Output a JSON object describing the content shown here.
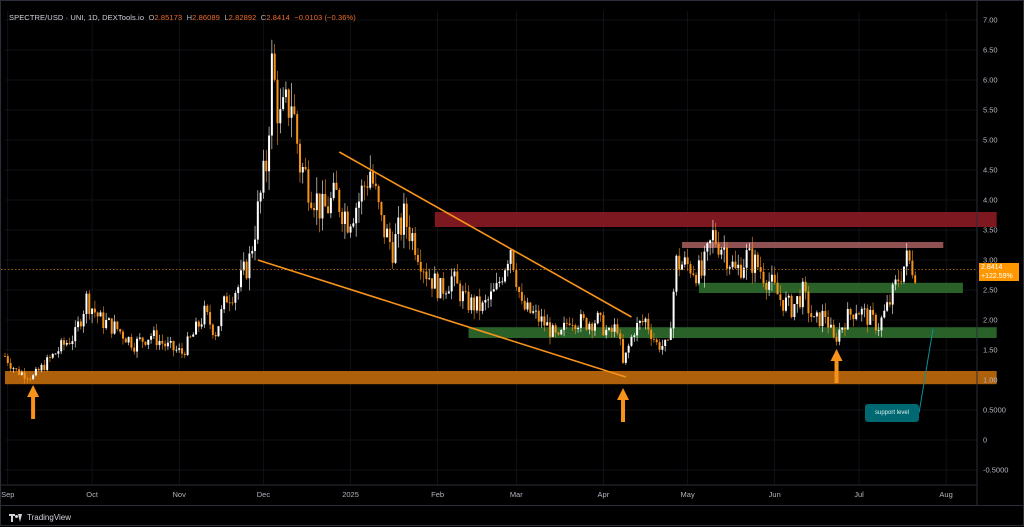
{
  "header": {
    "symbol": "SPECTRE/USD · UNI, 1D, DEXTools.io",
    "open_label": "O",
    "open": "2.85173",
    "high_label": "H",
    "high": "2.86089",
    "low_label": "L",
    "low": "2.82892",
    "close_label": "C",
    "close": "2.8414",
    "change": "−0.0103 (−0.36%)"
  },
  "price_tag": {
    "price": "2.8414",
    "change_pct": "+122.59%"
  },
  "footer": {
    "logo_text": "TradingView"
  },
  "annotation": {
    "text": "support level"
  },
  "colors": {
    "background": "#000000",
    "grid": "#1e222d",
    "candle": "#f7931a",
    "trendline": "#f7931a",
    "resistance_zone": "#8b1a24",
    "resistance_line": "#a05a5c",
    "support_zone": "#2e6b2e",
    "base_support": "#b8650c",
    "callout": "#006870"
  },
  "chart_data": {
    "type": "candlestick",
    "title": "SPECTRE/USD · UNI, 1D, DEXTools.io",
    "xlabel": "",
    "ylabel": "",
    "y_ticks": [
      "7.00",
      "6.50",
      "6.00",
      "5.50",
      "5.00",
      "4.50",
      "4.00",
      "3.50",
      "3.00",
      "2.50",
      "2.00",
      "1.50",
      "1.00",
      "0.5000",
      "0",
      "-0.5000"
    ],
    "y_tick_values": [
      7,
      6.5,
      6,
      5.5,
      5,
      4.5,
      4,
      3.5,
      3,
      2.5,
      2,
      1.5,
      1,
      0.5,
      0,
      -0.5
    ],
    "ylim": [
      -0.75,
      7.15
    ],
    "x_range": [
      "2024-08-31",
      "2025-08-12"
    ],
    "x_ticks": [
      {
        "label": "Sep",
        "date": "2024-09-01"
      },
      {
        "label": "Oct",
        "date": "2024-10-01"
      },
      {
        "label": "Nov",
        "date": "2024-11-01"
      },
      {
        "label": "Dec",
        "date": "2024-12-01"
      },
      {
        "label": "2025",
        "date": "2025-01-01"
      },
      {
        "label": "Feb",
        "date": "2025-02-01"
      },
      {
        "label": "Mar",
        "date": "2025-03-01"
      },
      {
        "label": "Apr",
        "date": "2025-04-01"
      },
      {
        "label": "May",
        "date": "2025-05-01"
      },
      {
        "label": "Jun",
        "date": "2025-06-01"
      },
      {
        "label": "Jul",
        "date": "2025-07-01"
      },
      {
        "label": "Aug",
        "date": "2025-08-01"
      }
    ],
    "grid": true,
    "last_price": 2.8414,
    "price_points": [
      [
        "2024-08-31",
        1.4
      ],
      [
        "2024-09-04",
        1.15
      ],
      [
        "2024-09-10",
        1.05
      ],
      [
        "2024-09-14",
        1.25
      ],
      [
        "2024-09-20",
        1.55
      ],
      [
        "2024-09-25",
        1.75
      ],
      [
        "2024-09-29",
        2.35
      ],
      [
        "2024-10-04",
        2.0
      ],
      [
        "2024-10-10",
        1.85
      ],
      [
        "2024-10-16",
        1.6
      ],
      [
        "2024-10-22",
        1.75
      ],
      [
        "2024-10-28",
        1.55
      ],
      [
        "2024-11-02",
        1.45
      ],
      [
        "2024-11-06",
        1.75
      ],
      [
        "2024-11-10",
        2.1
      ],
      [
        "2024-11-14",
        1.8
      ],
      [
        "2024-11-18",
        2.4
      ],
      [
        "2024-11-22",
        2.55
      ],
      [
        "2024-11-26",
        3.0
      ],
      [
        "2024-11-29",
        3.8
      ],
      [
        "2024-12-02",
        4.6
      ],
      [
        "2024-12-04",
        6.2
      ],
      [
        "2024-12-07",
        5.3
      ],
      [
        "2024-12-11",
        5.7
      ],
      [
        "2024-12-14",
        4.6
      ],
      [
        "2024-12-18",
        4.2
      ],
      [
        "2024-12-22",
        3.8
      ],
      [
        "2024-12-27",
        4.05
      ],
      [
        "2024-12-31",
        3.7
      ],
      [
        "2025-01-04",
        4.0
      ],
      [
        "2025-01-08",
        4.5
      ],
      [
        "2025-01-12",
        3.6
      ],
      [
        "2025-01-16",
        3.2
      ],
      [
        "2025-01-20",
        3.7
      ],
      [
        "2025-01-24",
        3.3
      ],
      [
        "2025-01-28",
        2.8
      ],
      [
        "2025-02-02",
        2.5
      ],
      [
        "2025-02-06",
        2.7
      ],
      [
        "2025-02-11",
        2.3
      ],
      [
        "2025-02-17",
        2.2
      ],
      [
        "2025-02-22",
        2.5
      ],
      [
        "2025-02-27",
        3.25
      ],
      [
        "2025-03-03",
        2.2
      ],
      [
        "2025-03-07",
        2.1
      ],
      [
        "2025-03-12",
        1.9
      ],
      [
        "2025-03-16",
        1.65
      ],
      [
        "2025-03-20",
        2.05
      ],
      [
        "2025-03-25",
        1.95
      ],
      [
        "2025-03-30",
        2.0
      ],
      [
        "2025-04-03",
        1.75
      ],
      [
        "2025-04-06",
        1.9
      ],
      [
        "2025-04-08",
        1.25
      ],
      [
        "2025-04-12",
        1.85
      ],
      [
        "2025-04-16",
        2.0
      ],
      [
        "2025-04-20",
        1.6
      ],
      [
        "2025-04-24",
        1.55
      ],
      [
        "2025-04-27",
        2.95
      ],
      [
        "2025-05-02",
        2.9
      ],
      [
        "2025-05-06",
        2.75
      ],
      [
        "2025-05-10",
        3.4
      ],
      [
        "2025-05-14",
        3.2
      ],
      [
        "2025-05-18",
        2.8
      ],
      [
        "2025-05-22",
        3.05
      ],
      [
        "2025-05-26",
        2.9
      ],
      [
        "2025-05-30",
        2.65
      ],
      [
        "2025-06-03",
        2.35
      ],
      [
        "2025-06-07",
        2.2
      ],
      [
        "2025-06-11",
        2.45
      ],
      [
        "2025-06-15",
        1.95
      ],
      [
        "2025-06-19",
        2.1
      ],
      [
        "2025-06-22",
        1.65
      ],
      [
        "2025-06-26",
        2.0
      ],
      [
        "2025-06-30",
        2.2
      ],
      [
        "2025-07-04",
        2.05
      ],
      [
        "2025-07-08",
        1.9
      ],
      [
        "2025-07-12",
        2.3
      ],
      [
        "2025-07-15",
        2.7
      ],
      [
        "2025-07-18",
        3.0
      ],
      [
        "2025-07-21",
        2.84
      ]
    ],
    "zones": [
      {
        "kind": "resistance",
        "from": "2025-01-31",
        "to": "2025-08-19",
        "low": 3.55,
        "high": 3.8
      },
      {
        "kind": "resistance",
        "from": "2025-04-29",
        "to": "2025-07-31",
        "low": 3.2,
        "high": 3.3
      },
      {
        "kind": "support",
        "from": "2025-05-05",
        "to": "2025-08-07",
        "low": 2.45,
        "high": 2.62
      },
      {
        "kind": "support",
        "from": "2025-02-12",
        "to": "2025-08-19",
        "low": 1.7,
        "high": 1.88
      },
      {
        "kind": "base-support",
        "from": "2024-08-31",
        "to": "2025-08-19",
        "low": 0.93,
        "high": 1.15
      }
    ],
    "trendlines": [
      {
        "from": [
          "2024-12-28",
          4.8
        ],
        "to": [
          "2025-04-11",
          2.05
        ]
      },
      {
        "from": [
          "2024-11-29",
          3.0
        ],
        "to": [
          "2025-04-09",
          1.05
        ]
      }
    ],
    "arrows": [
      {
        "date": "2024-09-10",
        "price": 0.35
      },
      {
        "date": "2025-04-08",
        "price": 0.3
      },
      {
        "date": "2025-06-23",
        "price": 0.95
      }
    ]
  }
}
